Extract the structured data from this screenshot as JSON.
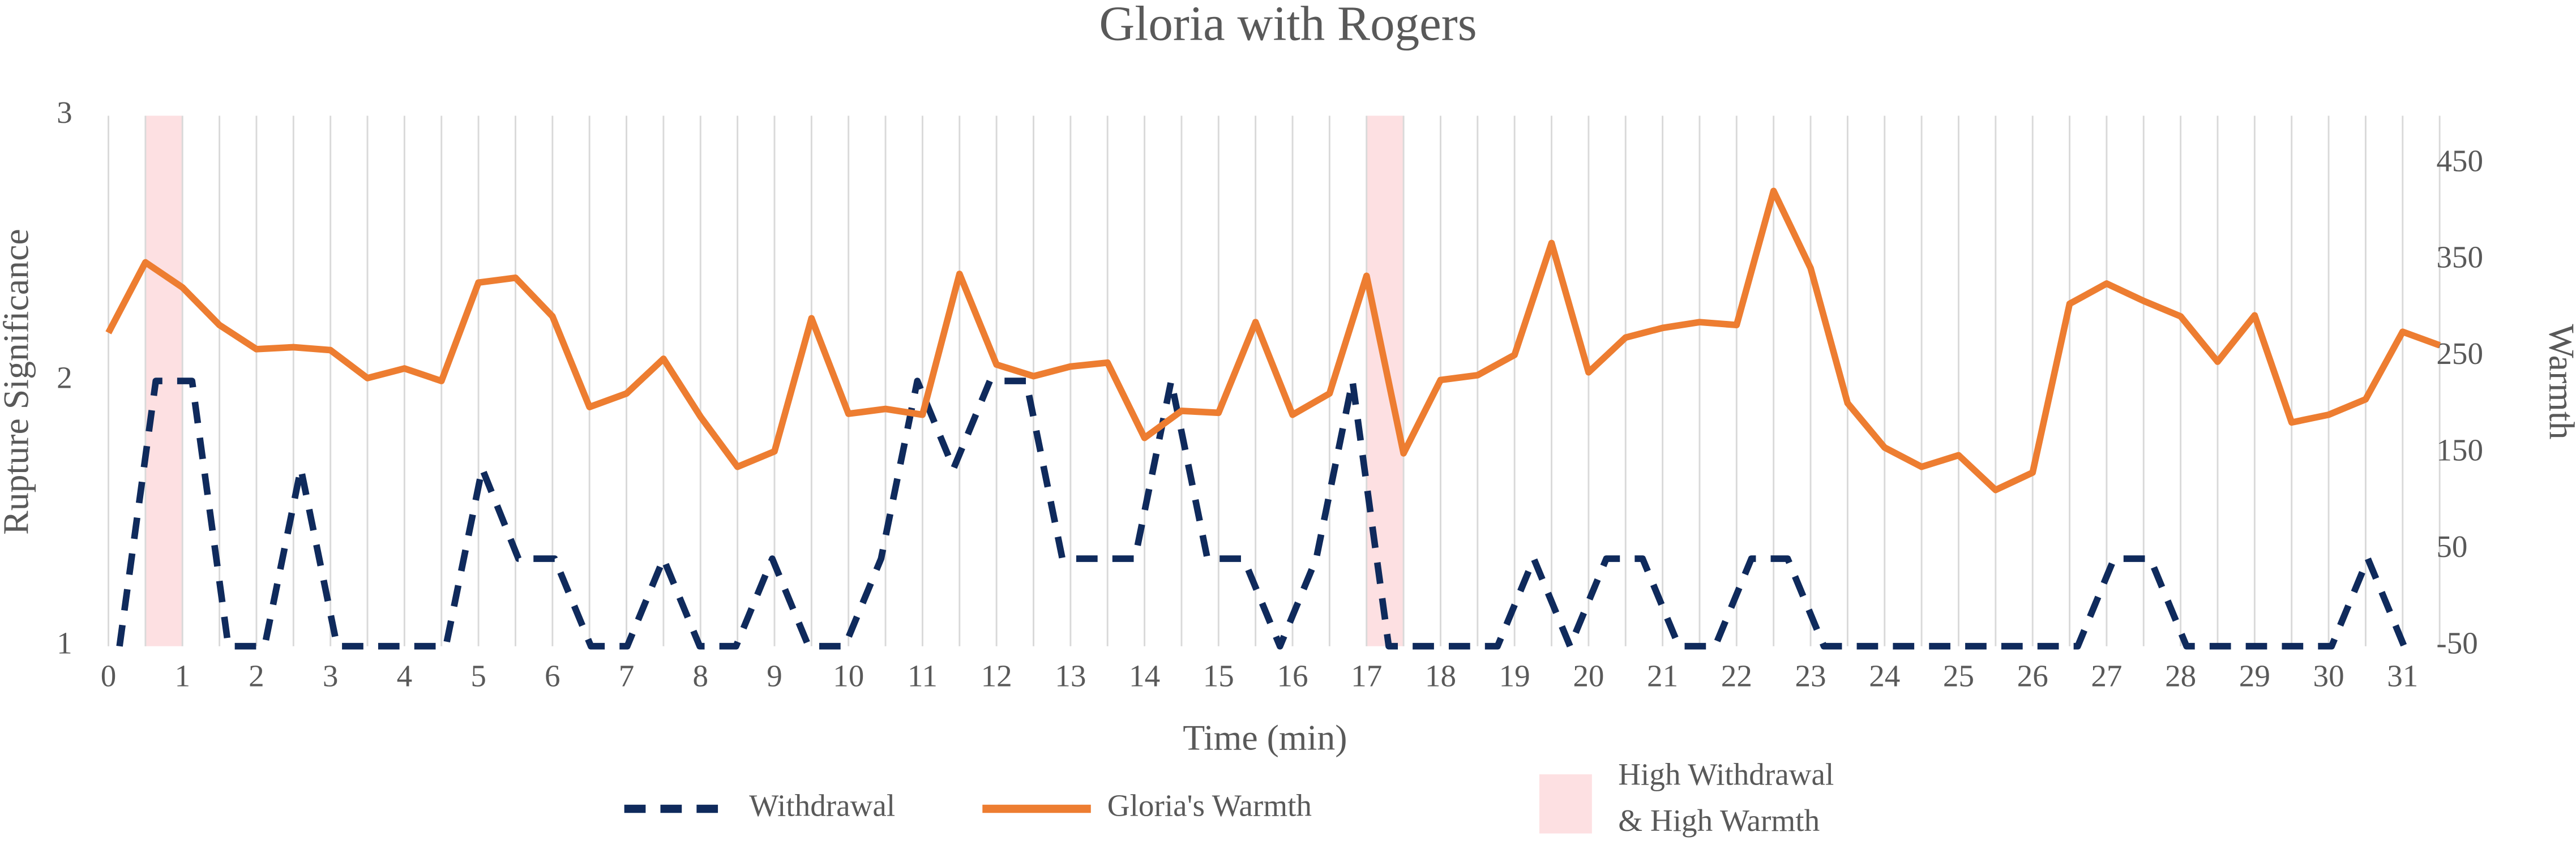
{
  "chart_data": {
    "type": "line",
    "title": "Gloria with Rogers",
    "xlabel": "Time (min)",
    "ylabel": "Rupture Significance",
    "y2label": "Warmth",
    "xlim": [
      0,
      31.5
    ],
    "xticks": [
      0,
      1,
      2,
      3,
      4,
      5,
      6,
      7,
      8,
      9,
      10,
      11,
      12,
      13,
      14,
      15,
      16,
      17,
      18,
      19,
      20,
      21,
      22,
      23,
      24,
      25,
      26,
      27,
      28,
      29,
      30,
      31
    ],
    "x_minor_ticks": [
      0.5,
      1.5,
      2.5,
      3.5,
      4.5,
      5.5,
      6.5,
      7.5,
      8.5,
      9.5,
      10.5,
      11.5,
      12.5,
      13.5,
      14.5,
      15.5,
      16.5,
      17.5,
      18.5,
      19.5,
      20.5,
      21.5,
      22.5,
      23.5,
      24.5,
      25.5,
      26.5,
      27.5,
      28.5,
      29.5,
      30.5,
      31.5
    ],
    "ylim": [
      1,
      3
    ],
    "yticks": [
      1,
      2,
      3
    ],
    "y2lim": [
      -50,
      500
    ],
    "y2ticks": [
      -50,
      50,
      150,
      250,
      350,
      450
    ],
    "grid": true,
    "series": [
      {
        "name": "Withdrawal",
        "color": "#0f2a5c",
        "dash": true,
        "x": [
          0.15,
          0.64,
          1.13,
          1.62,
          2.11,
          2.6,
          3.09,
          3.58,
          4.07,
          4.56,
          5.05,
          5.54,
          6.03,
          6.52,
          7.01,
          7.5,
          7.99,
          8.48,
          8.97,
          9.46,
          9.95,
          10.44,
          10.93,
          11.42,
          11.91,
          12.4,
          12.89,
          13.38,
          13.87,
          14.36,
          14.85,
          15.34,
          15.83,
          16.32,
          16.81,
          17.3,
          17.79,
          18.28,
          18.77,
          19.26,
          19.75,
          20.24,
          20.73,
          21.22,
          21.71,
          22.2,
          22.69,
          23.18,
          23.67,
          24.16,
          24.65,
          25.14,
          25.63,
          26.12,
          26.61,
          27.1,
          27.59,
          28.08,
          28.57,
          29.06,
          29.55,
          30.04,
          30.53,
          31.02
        ],
        "values": [
          1,
          2,
          2,
          1,
          1,
          1.67,
          1,
          1,
          1,
          1,
          1.67,
          1.33,
          1.33,
          1,
          1,
          1.33,
          1,
          1,
          1.33,
          1,
          1,
          1.33,
          2,
          1.67,
          2,
          2,
          1.33,
          1.33,
          1.33,
          2,
          1.33,
          1.33,
          1,
          1.33,
          2,
          1,
          1,
          1,
          1,
          1.33,
          1,
          1.33,
          1.33,
          1,
          1,
          1.33,
          1.33,
          1,
          1,
          1,
          1,
          1,
          1,
          1,
          1,
          1.33,
          1.33,
          1,
          1,
          1,
          1,
          1,
          1.33,
          1
        ]
      },
      {
        "name": "Gloria's Warmth",
        "color": "#ed7d31",
        "axis": "y2",
        "x": [
          0,
          0.5,
          1,
          1.5,
          2,
          2.5,
          3,
          3.5,
          4,
          4.5,
          5,
          5.5,
          6,
          6.5,
          7,
          7.5,
          8,
          8.5,
          9,
          9.5,
          10,
          10.5,
          11,
          11.5,
          12,
          12.5,
          13,
          13.5,
          14,
          14.5,
          15,
          15.5,
          16,
          16.5,
          17,
          17.5,
          18,
          18.5,
          19,
          19.5,
          20,
          20.5,
          21,
          21.5,
          22,
          22.5,
          23,
          23.5,
          24,
          24.5,
          25,
          25.5,
          26,
          26.5,
          27,
          27.5,
          28,
          28.5,
          29,
          29.5,
          30,
          30.5,
          31,
          31.5
        ],
        "values": [
          275,
          348,
          322,
          283,
          258,
          260,
          257,
          228,
          238,
          225,
          327,
          332,
          292,
          198,
          212,
          248,
          188,
          136,
          152,
          290,
          191,
          196,
          190,
          336,
          242,
          230,
          240,
          244,
          166,
          194,
          192,
          286,
          190,
          212,
          334,
          150,
          226,
          231,
          252,
          368,
          234,
          270,
          280,
          286,
          283,
          422,
          342,
          202,
          156,
          136,
          148,
          112,
          130,
          305,
          326,
          308,
          292,
          245,
          293,
          182,
          190,
          206,
          276,
          262
        ]
      }
    ],
    "highlight": {
      "label_lines": [
        "High Withdrawal",
        "& High Warmth"
      ],
      "color": "#fde0e2",
      "ranges": [
        [
          0.5,
          1.0
        ],
        [
          17.0,
          17.5
        ]
      ]
    }
  }
}
